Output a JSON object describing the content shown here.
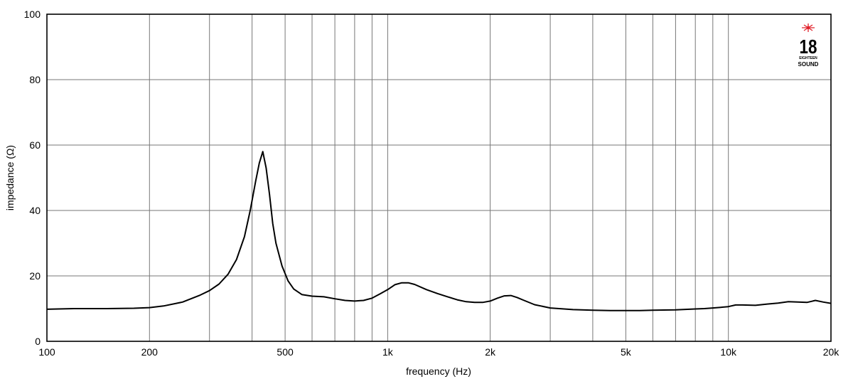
{
  "chart_data": {
    "type": "line",
    "title": "",
    "xlabel": "frequency (Hz)",
    "ylabel": "impedance (Ω)",
    "x_scale": "log",
    "xlim": [
      100,
      20000
    ],
    "ylim": [
      0,
      100
    ],
    "grid": true,
    "x_ticks": [
      {
        "value": 100,
        "label": "100"
      },
      {
        "value": 200,
        "label": "200"
      },
      {
        "value": 500,
        "label": "500"
      },
      {
        "value": 1000,
        "label": "1k"
      },
      {
        "value": 2000,
        "label": "2k"
      },
      {
        "value": 5000,
        "label": "5k"
      },
      {
        "value": 10000,
        "label": "10k"
      },
      {
        "value": 20000,
        "label": "20k"
      }
    ],
    "x_gridlines": [
      200,
      300,
      400,
      500,
      600,
      700,
      800,
      900,
      1000,
      2000,
      3000,
      4000,
      5000,
      6000,
      7000,
      8000,
      9000,
      10000
    ],
    "y_ticks": [
      {
        "value": 0,
        "label": "0"
      },
      {
        "value": 20,
        "label": "20"
      },
      {
        "value": 40,
        "label": "40"
      },
      {
        "value": 60,
        "label": "60"
      },
      {
        "value": 80,
        "label": "80"
      },
      {
        "value": 100,
        "label": "100"
      }
    ],
    "series": [
      {
        "color": "#000000",
        "x": [
          100,
          120,
          150,
          180,
          200,
          220,
          250,
          280,
          300,
          320,
          340,
          360,
          380,
          395,
          410,
          420,
          430,
          440,
          450,
          460,
          470,
          490,
          510,
          530,
          560,
          600,
          650,
          700,
          750,
          800,
          850,
          900,
          950,
          1000,
          1050,
          1100,
          1150,
          1200,
          1300,
          1400,
          1500,
          1600,
          1700,
          1800,
          1900,
          2000,
          2100,
          2200,
          2300,
          2400,
          2500,
          2700,
          3000,
          3500,
          4000,
          4500,
          5000,
          5500,
          6000,
          7000,
          8000,
          8500,
          9000,
          9500,
          10000,
          10500,
          11000,
          12000,
          13000,
          14000,
          15000,
          16000,
          17000,
          18000,
          19000,
          20000
        ],
        "y": [
          9.8,
          10.0,
          10.0,
          10.1,
          10.3,
          10.8,
          12.0,
          14.0,
          15.5,
          17.5,
          20.5,
          25.0,
          32.0,
          40.0,
          49.0,
          54.5,
          58.0,
          53.0,
          45.0,
          36.0,
          30.0,
          23.0,
          18.5,
          16.0,
          14.3,
          13.8,
          13.6,
          13.0,
          12.5,
          12.3,
          12.5,
          13.2,
          14.5,
          15.8,
          17.3,
          17.9,
          17.9,
          17.4,
          15.8,
          14.6,
          13.6,
          12.7,
          12.1,
          11.9,
          11.9,
          12.3,
          13.2,
          13.9,
          14.0,
          13.4,
          12.6,
          11.2,
          10.2,
          9.7,
          9.5,
          9.4,
          9.4,
          9.4,
          9.5,
          9.6,
          9.9,
          10.0,
          10.2,
          10.4,
          10.6,
          11.1,
          11.1,
          11.0,
          11.4,
          11.7,
          12.1,
          12.0,
          11.9,
          12.5,
          12.0,
          11.6
        ]
      }
    ]
  },
  "logo": {
    "number": "18",
    "line1": "EIGHTEEN",
    "line2": "SOUND",
    "star_color": "#e0202a"
  }
}
